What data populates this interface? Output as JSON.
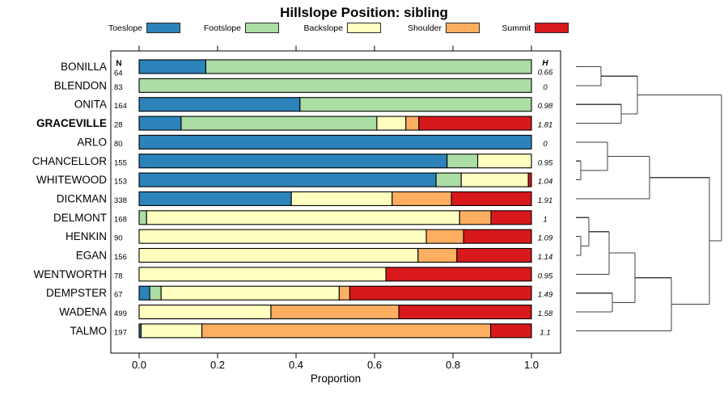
{
  "title": "Hillslope Position: sibling",
  "axis": {
    "label": "Proportion"
  },
  "columns": {
    "n_header": "N",
    "h_header": "H"
  },
  "chart_data": {
    "type": "bar",
    "orientation": "horizontal-stacked",
    "title": "Hillslope Position: sibling",
    "xlabel": "Proportion",
    "xlim": [
      0,
      1
    ],
    "xticks": [
      0,
      0.2,
      0.4,
      0.6,
      0.8,
      1.0
    ],
    "xtick_labels": [
      "0.0",
      "0.2",
      "0.4",
      "0.6",
      "0.8",
      "1.0"
    ],
    "categories": [
      "Toeslope",
      "Footslope",
      "Backslope",
      "Shoulder",
      "Summit"
    ],
    "colors": [
      "#2B83BA",
      "#ABDDA4",
      "#FFFFBF",
      "#FDAE61",
      "#D7191C"
    ],
    "legend_position": "top",
    "grid": false,
    "rows": [
      {
        "name": "BONILLA",
        "bold": false,
        "n": 64,
        "h": "0.66",
        "values": [
          0.17,
          0.83,
          0,
          0,
          0
        ]
      },
      {
        "name": "BLENDON",
        "bold": false,
        "n": 83,
        "h": "0",
        "values": [
          0,
          1,
          0,
          0,
          0
        ]
      },
      {
        "name": "ONITA",
        "bold": false,
        "n": 164,
        "h": "0.98",
        "values": [
          0.41,
          0.59,
          0,
          0,
          0
        ]
      },
      {
        "name": "GRACEVILLE",
        "bold": true,
        "n": 28,
        "h": "1.81",
        "values": [
          0.107,
          0.499,
          0.074,
          0.033,
          0.287
        ]
      },
      {
        "name": "ARLO",
        "bold": false,
        "n": 80,
        "h": "0",
        "values": [
          1,
          0,
          0,
          0,
          0
        ]
      },
      {
        "name": "CHANCELLOR",
        "bold": false,
        "n": 155,
        "h": "0.95",
        "values": [
          0.785,
          0.078,
          0.137,
          0,
          0
        ]
      },
      {
        "name": "WHITEWOOD",
        "bold": false,
        "n": 153,
        "h": "1.04",
        "values": [
          0.757,
          0.064,
          0.171,
          0,
          0.008
        ]
      },
      {
        "name": "DICKMAN",
        "bold": false,
        "n": 338,
        "h": "1.91",
        "values": [
          0.388,
          0,
          0.257,
          0.151,
          0.204
        ]
      },
      {
        "name": "DELMONT",
        "bold": false,
        "n": 168,
        "h": "1",
        "values": [
          0,
          0.019,
          0.798,
          0.08,
          0.103
        ]
      },
      {
        "name": "HENKIN",
        "bold": false,
        "n": 90,
        "h": "1.09",
        "values": [
          0,
          0,
          0.732,
          0.095,
          0.173
        ]
      },
      {
        "name": "EGAN",
        "bold": false,
        "n": 156,
        "h": "1.14",
        "values": [
          0,
          0,
          0.711,
          0.099,
          0.19
        ]
      },
      {
        "name": "WENTWORTH",
        "bold": false,
        "n": 78,
        "h": "0.95",
        "values": [
          0,
          0,
          0.629,
          0,
          0.371
        ]
      },
      {
        "name": "DEMPSTER",
        "bold": false,
        "n": 67,
        "h": "1.49",
        "values": [
          0.027,
          0.029,
          0.454,
          0.027,
          0.463
        ]
      },
      {
        "name": "WADENA",
        "bold": false,
        "n": 499,
        "h": "1.58",
        "values": [
          0,
          0,
          0.336,
          0.326,
          0.338
        ]
      },
      {
        "name": "TALMO",
        "bold": false,
        "n": 197,
        "h": "1.1",
        "values": [
          0.005,
          0,
          0.155,
          0.736,
          0.104
        ]
      }
    ],
    "dendrogram": {
      "description": "right-side cluster tree, leaves = rows top to bottom, h = normalized merge height",
      "merges": [
        {
          "a": "L0",
          "b": "L1",
          "h": 0.172
        },
        {
          "a": "L2",
          "b": "L3",
          "h": 0.311
        },
        {
          "a": "M0",
          "b": "M1",
          "h": 0.422
        },
        {
          "a": "L5",
          "b": "L6",
          "h": 0.033
        },
        {
          "a": "L4",
          "b": "M3",
          "h": 0.217
        },
        {
          "a": "M4",
          "b": "L7",
          "h": 0.506
        },
        {
          "a": "L9",
          "b": "L10",
          "h": 0.033
        },
        {
          "a": "L8",
          "b": "M6",
          "h": 0.089
        },
        {
          "a": "M7",
          "b": "L11",
          "h": 0.228
        },
        {
          "a": "L12",
          "b": "L13",
          "h": 0.25
        },
        {
          "a": "M8",
          "b": "M9",
          "h": 0.406
        },
        {
          "a": "M10",
          "b": "L14",
          "h": 0.656
        },
        {
          "a": "M5",
          "b": "M11",
          "h": 0.917
        },
        {
          "a": "M2",
          "b": "M12",
          "h": 1.0
        }
      ]
    }
  }
}
